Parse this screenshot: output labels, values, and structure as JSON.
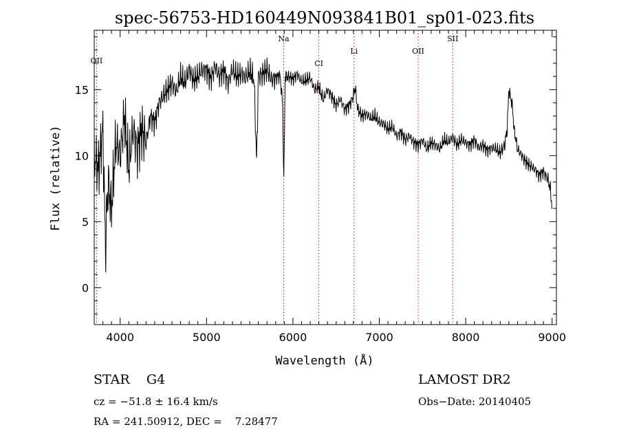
{
  "chart_data": {
    "type": "line",
    "title": "spec-56753-HD160449N093841B01_sp01-023.fits",
    "xlabel": "Wavelength (Å)",
    "ylabel": "Flux (relative)",
    "xlim": [
      3700,
      9050
    ],
    "ylim": [
      -2.8,
      19.5
    ],
    "xticks": [
      4000,
      5000,
      6000,
      7000,
      8000,
      9000
    ],
    "yticks": [
      0,
      5,
      10,
      15
    ],
    "grid": false,
    "line_color": "#000000",
    "marker_color": "#cc0000",
    "series": [
      {
        "x": [
          3700,
          3750,
          3800,
          3830,
          3860,
          3900,
          3950,
          4000,
          4050,
          4100,
          4150,
          4200,
          4250,
          4300,
          4350,
          4400,
          4450,
          4500,
          4550,
          4600,
          4650,
          4700,
          4750,
          4800,
          4850,
          4900,
          4950,
          5000,
          5050,
          5100,
          5150,
          5200,
          5250,
          5300,
          5350,
          5400,
          5450,
          5500,
          5550,
          5580,
          5600,
          5650,
          5700,
          5750,
          5800,
          5850,
          5880,
          5895,
          5910,
          5950,
          6000,
          6050,
          6100,
          6150,
          6200,
          6250,
          6300,
          6350,
          6400,
          6450,
          6500,
          6550,
          6600,
          6650,
          6700,
          6720,
          6750,
          6800,
          6850,
          6900,
          6950,
          7000,
          7050,
          7100,
          7150,
          7200,
          7250,
          7300,
          7350,
          7400,
          7450,
          7500,
          7550,
          7600,
          7650,
          7700,
          7750,
          7800,
          7850,
          7900,
          7950,
          8000,
          8050,
          8100,
          8150,
          8200,
          8250,
          8300,
          8350,
          8400,
          8450,
          8480,
          8500,
          8540,
          8560,
          8600,
          8650,
          8700,
          8750,
          8800,
          8850,
          8900,
          8950,
          8980,
          9000
        ],
        "y": [
          10,
          9,
          12,
          3,
          8,
          6,
          11,
          10,
          13,
          9,
          12,
          10.5,
          12,
          11,
          13,
          12.5,
          14,
          14.5,
          15,
          15.5,
          14.8,
          16,
          15.5,
          16.5,
          15.7,
          16,
          16.5,
          16.5,
          15.8,
          16.8,
          16,
          16.5,
          15.5,
          16.5,
          16,
          16.2,
          15.9,
          16.4,
          15.8,
          9.5,
          16,
          16.2,
          16.5,
          15.8,
          15.9,
          16.1,
          14,
          8,
          16,
          16,
          15.8,
          16.2,
          15.6,
          15.7,
          15.9,
          15,
          15.2,
          14.2,
          15,
          14.5,
          13.8,
          14.3,
          13.5,
          13.8,
          14.5,
          15.2,
          13.5,
          13,
          13.2,
          12.8,
          13,
          12.5,
          12.4,
          12,
          12.2,
          11.5,
          11.8,
          11.2,
          11.5,
          11,
          10.8,
          11.2,
          10.5,
          11,
          10.8,
          10.5,
          11.2,
          11,
          11.4,
          10.8,
          11.2,
          11,
          10.8,
          11.2,
          10.6,
          10.8,
          10.4,
          10.6,
          10.5,
          10.2,
          10.8,
          12,
          15,
          13.8,
          12,
          10.5,
          10,
          9.5,
          9.2,
          9,
          8.5,
          8.8,
          8.2,
          7.5,
          6
        ]
      }
    ],
    "line_markers": [
      {
        "label": "OII",
        "x": 3727
      },
      {
        "label": "Na",
        "x": 5893
      },
      {
        "label": "CI",
        "x": 6300
      },
      {
        "label": "Li",
        "x": 6708
      },
      {
        "label": "OII",
        "x": 7450
      },
      {
        "label": "SII",
        "x": 7850
      }
    ]
  },
  "info": {
    "object_class": "STAR    G4",
    "survey": "LAMOST DR2",
    "redshift": "cz = −51.8 ± 16.4 km/s",
    "obs_date": "Obs−Date: 20140405",
    "coords": "RA = 241.50912, DEC =    7.28477"
  }
}
